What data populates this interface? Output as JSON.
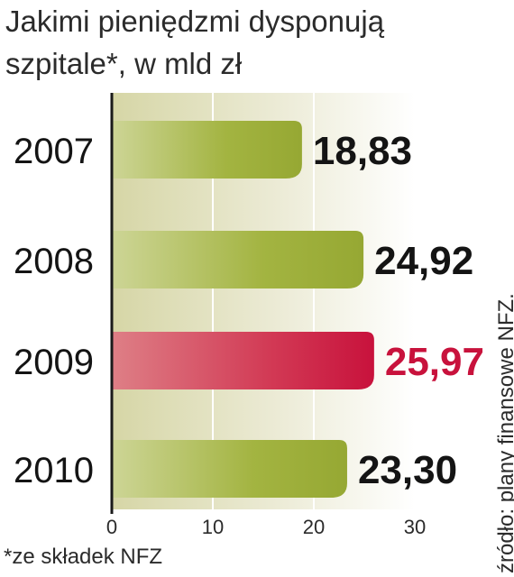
{
  "title_line1": "Jakimi pieniędzmi dysponują",
  "title_line2": "szpitale*, w mld zł",
  "footnote": "*ze składek NFZ",
  "source": "źródło: plany finansowe NFZ.",
  "colors": {
    "bar": "#a3b441",
    "highlight_bar": "#c8123c",
    "highlight_label": "#c8123c",
    "label": "#141414",
    "axis": "#1a1a1a"
  },
  "chart_data": {
    "type": "bar",
    "orientation": "horizontal",
    "categories": [
      "2007",
      "2008",
      "2009",
      "2010"
    ],
    "values": [
      18.83,
      24.92,
      25.97,
      23.3
    ],
    "value_labels": [
      "18,83",
      "24,92",
      "25,97",
      "23,30"
    ],
    "highlight": "2009",
    "xlim": [
      0,
      30
    ],
    "xticks": [
      "0",
      "10",
      "20",
      "30"
    ],
    "grid": true
  }
}
